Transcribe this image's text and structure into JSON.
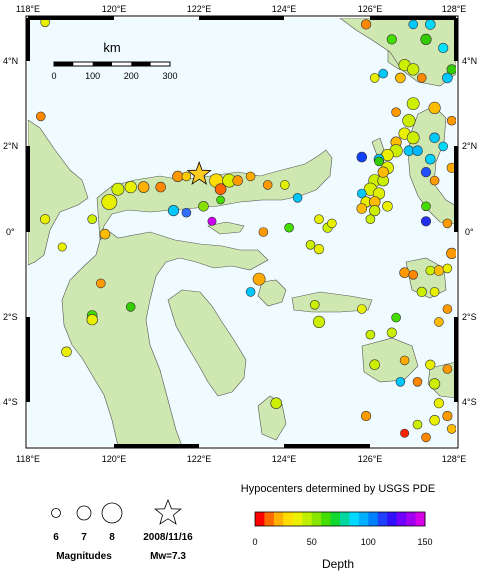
{
  "map": {
    "top_lon_labels": [
      "118°E",
      "120°E",
      "122°E",
      "124°E",
      "126°E",
      "128°E"
    ],
    "bottom_lon_labels": [
      "118°E",
      "120°E",
      "122°E",
      "124°E",
      "126°E",
      "128°E"
    ],
    "left_lat_labels": [
      "4°N",
      "2°N",
      "0°",
      "2°S",
      "4°S"
    ],
    "right_lat_labels": [
      "4°N",
      "2°N",
      "0°",
      "2°S",
      "4°S"
    ],
    "ocean_color": "#f0fbff",
    "land_color": "#cfe7b0",
    "coast_color": "#555555"
  },
  "scale_bar": {
    "title": "km",
    "ticks": [
      "0",
      "100",
      "200",
      "300"
    ]
  },
  "events": [
    {
      "lon": 122.0,
      "lat": 1.35,
      "mag": 7.3,
      "color": "#ffcc22",
      "star": true
    },
    {
      "lon": 119.9,
      "lat": 0.7,
      "mag": 7.2,
      "color": "#e8f000"
    },
    {
      "lon": 120.1,
      "lat": 1.0,
      "mag": 6.6,
      "color": "#d4f000"
    },
    {
      "lon": 120.4,
      "lat": 1.05,
      "mag": 6.5,
      "color": "#e8f000"
    },
    {
      "lon": 120.7,
      "lat": 1.05,
      "mag": 6.4,
      "color": "#ffb000"
    },
    {
      "lon": 121.1,
      "lat": 1.05,
      "mag": 6.2,
      "color": "#ff8800"
    },
    {
      "lon": 121.5,
      "lat": 1.3,
      "mag": 6.3,
      "color": "#ff9900"
    },
    {
      "lon": 121.7,
      "lat": 1.3,
      "mag": 6.0,
      "color": "#ffcc00"
    },
    {
      "lon": 122.4,
      "lat": 1.2,
      "mag": 6.9,
      "color": "#ffdd00"
    },
    {
      "lon": 122.7,
      "lat": 1.2,
      "mag": 6.8,
      "color": "#d8f000"
    },
    {
      "lon": 122.5,
      "lat": 1.0,
      "mag": 6.4,
      "color": "#ff6600"
    },
    {
      "lon": 122.9,
      "lat": 1.2,
      "mag": 6.2,
      "color": "#ff9900"
    },
    {
      "lon": 123.2,
      "lat": 1.3,
      "mag": 6.0,
      "color": "#ffaa00"
    },
    {
      "lon": 123.6,
      "lat": 1.1,
      "mag": 6.0,
      "color": "#ff9900"
    },
    {
      "lon": 124.0,
      "lat": 1.1,
      "mag": 6.0,
      "color": "#e0f000"
    },
    {
      "lon": 121.4,
      "lat": 0.5,
      "mag": 6.3,
      "color": "#00c8ff"
    },
    {
      "lon": 121.7,
      "lat": 0.45,
      "mag": 6.0,
      "color": "#3070ff"
    },
    {
      "lon": 122.1,
      "lat": 0.6,
      "mag": 6.2,
      "color": "#88e000"
    },
    {
      "lon": 122.3,
      "lat": 0.25,
      "mag": 5.9,
      "color": "#cc00ee"
    },
    {
      "lon": 122.5,
      "lat": 0.75,
      "mag": 5.8,
      "color": "#44dd00"
    },
    {
      "lon": 124.3,
      "lat": 0.8,
      "mag": 6.0,
      "color": "#00c8ff"
    },
    {
      "lon": 118.4,
      "lat": 0.3,
      "mag": 6.1,
      "color": "#e8f000"
    },
    {
      "lon": 118.8,
      "lat": -0.35,
      "mag": 5.9,
      "color": "#e8f000"
    },
    {
      "lon": 119.8,
      "lat": -0.05,
      "mag": 6.2,
      "color": "#ffbb00"
    },
    {
      "lon": 119.5,
      "lat": 0.3,
      "mag": 6.0,
      "color": "#ccee00"
    },
    {
      "lon": 118.3,
      "lat": 2.7,
      "mag": 6.0,
      "color": "#ff8800"
    },
    {
      "lon": 118.4,
      "lat": 4.9,
      "mag": 6.0,
      "color": "#e8f000"
    },
    {
      "lon": 125.9,
      "lat": 4.85,
      "mag": 6.1,
      "color": "#ff8800"
    },
    {
      "lon": 127.0,
      "lat": 4.85,
      "mag": 6.0,
      "color": "#00c8ff"
    },
    {
      "lon": 127.4,
      "lat": 4.85,
      "mag": 6.2,
      "color": "#00d8ff"
    },
    {
      "lon": 126.5,
      "lat": 4.5,
      "mag": 6.1,
      "color": "#44dd00"
    },
    {
      "lon": 127.3,
      "lat": 4.5,
      "mag": 6.3,
      "color": "#33cc00"
    },
    {
      "lon": 126.8,
      "lat": 3.9,
      "mag": 6.5,
      "color": "#ccee00"
    },
    {
      "lon": 127.0,
      "lat": 3.8,
      "mag": 6.5,
      "color": "#ccee00"
    },
    {
      "lon": 126.7,
      "lat": 3.6,
      "mag": 6.2,
      "color": "#ffbb00"
    },
    {
      "lon": 127.2,
      "lat": 3.6,
      "mag": 6.0,
      "color": "#ff8800"
    },
    {
      "lon": 126.3,
      "lat": 3.7,
      "mag": 6.0,
      "color": "#00c8ff"
    },
    {
      "lon": 126.1,
      "lat": 3.6,
      "mag": 6.0,
      "color": "#e8f000"
    },
    {
      "lon": 127.8,
      "lat": 3.6,
      "mag": 6.2,
      "color": "#00c8ff"
    },
    {
      "lon": 127.7,
      "lat": 4.3,
      "mag": 6.1,
      "color": "#00e0ff"
    },
    {
      "lon": 127.9,
      "lat": 3.8,
      "mag": 6.1,
      "color": "#33cc00"
    },
    {
      "lon": 127.0,
      "lat": 3.0,
      "mag": 6.6,
      "color": "#ccee00"
    },
    {
      "lon": 127.5,
      "lat": 2.9,
      "mag": 6.5,
      "color": "#ffbb00"
    },
    {
      "lon": 126.6,
      "lat": 2.8,
      "mag": 6.0,
      "color": "#ff9900"
    },
    {
      "lon": 126.9,
      "lat": 2.6,
      "mag": 6.7,
      "color": "#ccee00"
    },
    {
      "lon": 127.9,
      "lat": 2.6,
      "mag": 6.0,
      "color": "#ff9900"
    },
    {
      "lon": 126.8,
      "lat": 2.3,
      "mag": 6.5,
      "color": "#e8f000"
    },
    {
      "lon": 127.0,
      "lat": 2.2,
      "mag": 6.6,
      "color": "#ccee00"
    },
    {
      "lon": 126.6,
      "lat": 2.1,
      "mag": 6.3,
      "color": "#ffbb00"
    },
    {
      "lon": 126.6,
      "lat": 1.9,
      "mag": 6.7,
      "color": "#ccee00"
    },
    {
      "lon": 126.4,
      "lat": 1.8,
      "mag": 6.5,
      "color": "#e8f000"
    },
    {
      "lon": 126.9,
      "lat": 1.9,
      "mag": 6.2,
      "color": "#00c8ff"
    },
    {
      "lon": 127.1,
      "lat": 1.9,
      "mag": 6.2,
      "color": "#00b8ff"
    },
    {
      "lon": 127.5,
      "lat": 2.2,
      "mag": 6.2,
      "color": "#00c8ff"
    },
    {
      "lon": 127.7,
      "lat": 2.0,
      "mag": 6.0,
      "color": "#00d8ff"
    },
    {
      "lon": 127.4,
      "lat": 1.7,
      "mag": 6.2,
      "color": "#00d0ff"
    },
    {
      "lon": 127.3,
      "lat": 1.4,
      "mag": 6.1,
      "color": "#2050ff"
    },
    {
      "lon": 127.9,
      "lat": 1.5,
      "mag": 6.1,
      "color": "#ffaa00"
    },
    {
      "lon": 126.4,
      "lat": 1.5,
      "mag": 6.6,
      "color": "#e0f000"
    },
    {
      "lon": 126.2,
      "lat": 1.7,
      "mag": 6.2,
      "color": "#00c8ff"
    },
    {
      "lon": 125.8,
      "lat": 1.75,
      "mag": 6.2,
      "color": "#1040ff"
    },
    {
      "lon": 126.1,
      "lat": 1.2,
      "mag": 6.6,
      "color": "#ccee00"
    },
    {
      "lon": 126.3,
      "lat": 1.2,
      "mag": 6.4,
      "color": "#ccee00"
    },
    {
      "lon": 126.0,
      "lat": 1.0,
      "mag": 6.7,
      "color": "#d8f000"
    },
    {
      "lon": 125.8,
      "lat": 0.9,
      "mag": 6.0,
      "color": "#00c8ff"
    },
    {
      "lon": 126.2,
      "lat": 0.9,
      "mag": 6.5,
      "color": "#e0f000"
    },
    {
      "lon": 125.9,
      "lat": 0.7,
      "mag": 6.3,
      "color": "#e8f000"
    },
    {
      "lon": 126.1,
      "lat": 0.7,
      "mag": 6.4,
      "color": "#ffbb00"
    },
    {
      "lon": 125.8,
      "lat": 0.55,
      "mag": 6.2,
      "color": "#ffbb00"
    },
    {
      "lon": 126.1,
      "lat": 0.5,
      "mag": 6.3,
      "color": "#ccee00"
    },
    {
      "lon": 126.4,
      "lat": 0.6,
      "mag": 6.2,
      "color": "#e8f000"
    },
    {
      "lon": 126.0,
      "lat": 0.3,
      "mag": 6.0,
      "color": "#ccee00"
    },
    {
      "lon": 126.3,
      "lat": 1.4,
      "mag": 6.3,
      "color": "#ffbb00"
    },
    {
      "lon": 126.2,
      "lat": 1.65,
      "mag": 6.0,
      "color": "#33cc00"
    },
    {
      "lon": 127.3,
      "lat": 0.25,
      "mag": 6.1,
      "color": "#2030ee"
    },
    {
      "lon": 127.3,
      "lat": 0.6,
      "mag": 6.0,
      "color": "#44dd00"
    },
    {
      "lon": 127.5,
      "lat": 1.2,
      "mag": 6.0,
      "color": "#ff9900"
    },
    {
      "lon": 127.8,
      "lat": 0.2,
      "mag": 6.0,
      "color": "#ff9900"
    },
    {
      "lon": 127.9,
      "lat": -0.5,
      "mag": 6.3,
      "color": "#ff9900"
    },
    {
      "lon": 127.6,
      "lat": -0.9,
      "mag": 6.2,
      "color": "#ffbb00"
    },
    {
      "lon": 127.8,
      "lat": -0.85,
      "mag": 6.0,
      "color": "#e8f000"
    },
    {
      "lon": 127.4,
      "lat": -0.9,
      "mag": 6.0,
      "color": "#ccee00"
    },
    {
      "lon": 126.8,
      "lat": -0.95,
      "mag": 6.2,
      "color": "#ff9900"
    },
    {
      "lon": 127.0,
      "lat": -1.0,
      "mag": 6.0,
      "color": "#ff8800"
    },
    {
      "lon": 127.2,
      "lat": -1.4,
      "mag": 6.1,
      "color": "#ccee00"
    },
    {
      "lon": 127.5,
      "lat": -1.4,
      "mag": 6.0,
      "color": "#e8f000"
    },
    {
      "lon": 127.8,
      "lat": -1.8,
      "mag": 6.0,
      "color": "#ff9900"
    },
    {
      "lon": 127.6,
      "lat": -2.1,
      "mag": 6.0,
      "color": "#ffbb00"
    },
    {
      "lon": 126.6,
      "lat": -2.0,
      "mag": 6.0,
      "color": "#44dd00"
    },
    {
      "lon": 126.5,
      "lat": -2.35,
      "mag": 6.1,
      "color": "#ccee00"
    },
    {
      "lon": 125.8,
      "lat": -1.8,
      "mag": 6.0,
      "color": "#e8f000"
    },
    {
      "lon": 126.0,
      "lat": -2.4,
      "mag": 6.0,
      "color": "#ccee00"
    },
    {
      "lon": 126.1,
      "lat": -3.1,
      "mag": 6.2,
      "color": "#ccee00"
    },
    {
      "lon": 126.8,
      "lat": -3.0,
      "mag": 6.0,
      "color": "#ffaa00"
    },
    {
      "lon": 127.4,
      "lat": -3.1,
      "mag": 6.1,
      "color": "#e8f000"
    },
    {
      "lon": 127.8,
      "lat": -3.2,
      "mag": 6.0,
      "color": "#ff9900"
    },
    {
      "lon": 127.5,
      "lat": -3.55,
      "mag": 6.3,
      "color": "#ccee00"
    },
    {
      "lon": 127.1,
      "lat": -3.5,
      "mag": 6.0,
      "color": "#ff8800"
    },
    {
      "lon": 126.7,
      "lat": -3.5,
      "mag": 6.0,
      "color": "#00c8ff"
    },
    {
      "lon": 127.6,
      "lat": -4.0,
      "mag": 6.1,
      "color": "#e8f000"
    },
    {
      "lon": 127.8,
      "lat": -4.3,
      "mag": 6.1,
      "color": "#ff9900"
    },
    {
      "lon": 127.5,
      "lat": -4.4,
      "mag": 6.2,
      "color": "#e8f000"
    },
    {
      "lon": 127.1,
      "lat": -4.5,
      "mag": 6.0,
      "color": "#ccee00"
    },
    {
      "lon": 127.3,
      "lat": -4.8,
      "mag": 6.0,
      "color": "#ff8800"
    },
    {
      "lon": 127.9,
      "lat": -4.6,
      "mag": 6.0,
      "color": "#ffbb00"
    },
    {
      "lon": 126.8,
      "lat": -4.7,
      "mag": 5.9,
      "color": "#ff2200"
    },
    {
      "lon": 125.9,
      "lat": -4.3,
      "mag": 6.1,
      "color": "#ff9900"
    },
    {
      "lon": 124.8,
      "lat": 0.3,
      "mag": 6.0,
      "color": "#e8f000"
    },
    {
      "lon": 125.0,
      "lat": 0.1,
      "mag": 6.1,
      "color": "#ccee00"
    },
    {
      "lon": 125.1,
      "lat": 0.2,
      "mag": 6.0,
      "color": "#e8f000"
    },
    {
      "lon": 124.6,
      "lat": -0.3,
      "mag": 6.0,
      "color": "#ccee00"
    },
    {
      "lon": 124.8,
      "lat": -0.4,
      "mag": 6.1,
      "color": "#e8f000"
    },
    {
      "lon": 124.1,
      "lat": 0.1,
      "mag": 6.0,
      "color": "#44dd00"
    },
    {
      "lon": 123.5,
      "lat": 0.0,
      "mag": 6.0,
      "color": "#ff9900"
    },
    {
      "lon": 123.4,
      "lat": -1.1,
      "mag": 6.6,
      "color": "#ffaa00"
    },
    {
      "lon": 123.2,
      "lat": -1.4,
      "mag": 6.0,
      "color": "#00c8ff"
    },
    {
      "lon": 124.7,
      "lat": -1.7,
      "mag": 6.0,
      "color": "#ccee00"
    },
    {
      "lon": 124.8,
      "lat": -2.1,
      "mag": 6.5,
      "color": "#ccee00"
    },
    {
      "lon": 123.8,
      "lat": -4.0,
      "mag": 6.4,
      "color": "#ccee00"
    },
    {
      "lon": 119.7,
      "lat": -1.2,
      "mag": 6.0,
      "color": "#ff9900"
    },
    {
      "lon": 119.5,
      "lat": -1.95,
      "mag": 6.2,
      "color": "#44dd00"
    },
    {
      "lon": 119.5,
      "lat": -2.05,
      "mag": 6.3,
      "color": "#e8f000"
    },
    {
      "lon": 120.4,
      "lat": -1.75,
      "mag": 6.0,
      "color": "#33cc00"
    },
    {
      "lon": 118.9,
      "lat": -2.8,
      "mag": 6.2,
      "color": "#e8f000"
    }
  ],
  "legend": {
    "magnitude_title": "Magnitudes",
    "magnitude_sizes": [
      "6",
      "7",
      "8"
    ],
    "star_date": "2008/11/16",
    "star_mw": "Mw=7.3",
    "source_text": "Hypocenters determined by USGS PDE",
    "depth_title": "Depth",
    "depth_ticks": [
      "0",
      "50",
      "100",
      "150"
    ],
    "depth_colors": [
      "#ff0000",
      "#ff6a00",
      "#ffb000",
      "#ffdd00",
      "#ecf000",
      "#bff000",
      "#88e600",
      "#44dd00",
      "#10d830",
      "#00d8a0",
      "#00d8ff",
      "#00b0ff",
      "#0080ff",
      "#2040ff",
      "#3010ff",
      "#7000ff",
      "#a000f0",
      "#d800e8"
    ]
  }
}
